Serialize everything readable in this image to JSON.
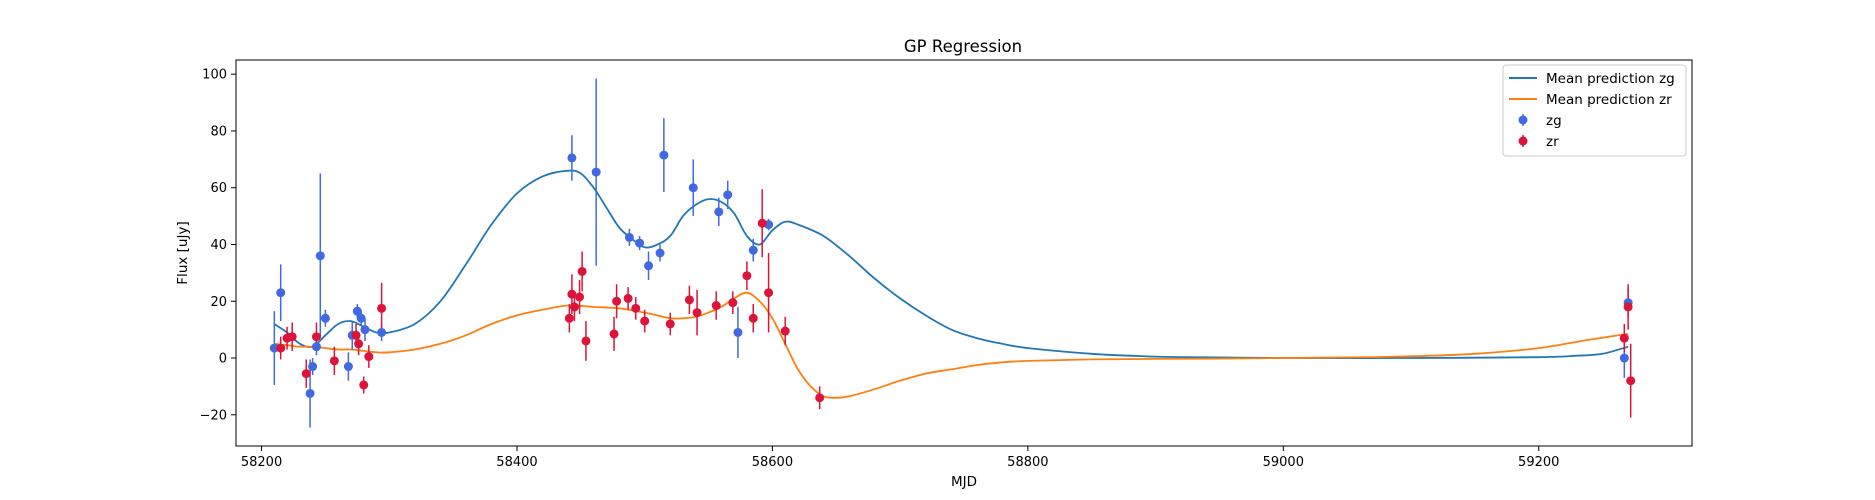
{
  "chart_data": {
    "type": "scatter",
    "title": "GP Regression",
    "xlabel": "MJD",
    "ylabel": "Flux [uJy]",
    "xlim": [
      58180,
      59320
    ],
    "ylim": [
      -31,
      105
    ],
    "xticks": [
      58200,
      58400,
      58600,
      58800,
      59000,
      59200
    ],
    "yticks": [
      -20,
      0,
      20,
      40,
      60,
      80,
      100
    ],
    "grid": false,
    "legend_position": "top-right",
    "legend": [
      "Mean prediction zg",
      "Mean prediction zr",
      "zg",
      "zr"
    ],
    "colors": {
      "mean_zg": "#1f77b4",
      "mean_zr": "#ff7f0e",
      "points_zg": "#4169e1",
      "points_zr": "#dc143c"
    },
    "mean_predictions": [
      {
        "name": "Mean prediction zg",
        "x": [
          58210,
          58220,
          58230,
          58240,
          58250,
          58260,
          58270,
          58280,
          58290,
          58300,
          58320,
          58340,
          58360,
          58380,
          58400,
          58420,
          58440,
          58450,
          58460,
          58470,
          58480,
          58490,
          58500,
          58510,
          58520,
          58530,
          58540,
          58550,
          58560,
          58570,
          58580,
          58590,
          58600,
          58610,
          58620,
          58640,
          58660,
          58680,
          58700,
          58720,
          58740,
          58760,
          58780,
          58800,
          58850,
          58900,
          58950,
          59000,
          59100,
          59200,
          59230,
          59250,
          59270
        ],
        "y": [
          12,
          9,
          5,
          4,
          8,
          12,
          13,
          11,
          9,
          9,
          12,
          20,
          33,
          47,
          58,
          64,
          66,
          65,
          60,
          53,
          46,
          42,
          39,
          40,
          43,
          50,
          54,
          56,
          55,
          51,
          43,
          40,
          45,
          48,
          47,
          43,
          36,
          28,
          21,
          15,
          10,
          7,
          5,
          3.5,
          1.5,
          0.5,
          0.2,
          0,
          0,
          0.3,
          0.8,
          1.5,
          4
        ]
      },
      {
        "name": "Mean prediction zr",
        "x": [
          58210,
          58220,
          58230,
          58240,
          58250,
          58260,
          58270,
          58280,
          58290,
          58300,
          58320,
          58340,
          58360,
          58380,
          58400,
          58420,
          58440,
          58460,
          58480,
          58500,
          58510,
          58520,
          58530,
          58540,
          58550,
          58560,
          58570,
          58580,
          58590,
          58600,
          58610,
          58620,
          58630,
          58640,
          58650,
          58660,
          58680,
          58700,
          58720,
          58740,
          58760,
          58780,
          58800,
          58850,
          58900,
          58950,
          59000,
          59050,
          59100,
          59150,
          59200,
          59240,
          59270
        ],
        "y": [
          5,
          4.5,
          4,
          4,
          3.5,
          3,
          3,
          2.5,
          2,
          2,
          3,
          5,
          8,
          12,
          15,
          17,
          18.5,
          18,
          17.5,
          16,
          15,
          14,
          14,
          14.5,
          16,
          18,
          21,
          23,
          20,
          14,
          5,
          -4,
          -10,
          -13.5,
          -14,
          -13.5,
          -11,
          -8,
          -5.5,
          -4,
          -2.5,
          -1.5,
          -1,
          -0.5,
          -0.3,
          -0.2,
          0,
          0.2,
          0.6,
          1.5,
          3.5,
          6.5,
          8.5
        ]
      }
    ],
    "series": [
      {
        "name": "zg",
        "x": [
          58210,
          58215,
          58238,
          58240,
          58243,
          58246,
          58250,
          58268,
          58271,
          58275,
          58278,
          58281,
          58294,
          58443,
          58462,
          58488,
          58496,
          58503,
          58512,
          58515,
          58538,
          58558,
          58565,
          58573,
          58585,
          58597,
          59267,
          59270
        ],
        "y": [
          3.5,
          23,
          -12.5,
          -3,
          4,
          36,
          14,
          -3,
          8,
          16.5,
          14,
          10,
          9,
          70.5,
          65.5,
          42.5,
          40.5,
          32.5,
          37,
          71.5,
          60,
          51.5,
          57.5,
          9,
          38,
          47,
          0,
          19.5
        ],
        "err": [
          13,
          10,
          12,
          3,
          3,
          29,
          3,
          5,
          5,
          2.5,
          2.5,
          4,
          3,
          8,
          33,
          3,
          2.5,
          5,
          3,
          13,
          10,
          5,
          5,
          9,
          4,
          2,
          7,
          5
        ]
      },
      {
        "name": "zr",
        "x": [
          58215,
          58220,
          58224,
          58235,
          58243,
          58257,
          58274,
          58276,
          58280,
          58284,
          58294,
          58441,
          58443,
          58445,
          58449,
          58451,
          58454,
          58476,
          58478,
          58487,
          58493,
          58500,
          58520,
          58535,
          58541,
          58556,
          58569,
          58580,
          58585,
          58592,
          58597,
          58610,
          58637,
          59267,
          59270,
          59272
        ],
        "y": [
          3.5,
          7,
          7.5,
          -5.5,
          7.5,
          -1,
          8,
          5,
          -9.5,
          0.5,
          17.5,
          14,
          22.5,
          18,
          21.5,
          30.5,
          6,
          8.5,
          20,
          21,
          17.5,
          13,
          12,
          20.5,
          16,
          18.5,
          19.5,
          29,
          14,
          47.5,
          23,
          9.5,
          -14,
          7,
          18,
          -8
        ],
        "err": [
          4,
          4,
          5,
          5,
          5,
          5,
          4,
          4,
          3,
          4,
          9,
          5,
          7,
          5,
          6,
          7,
          7,
          6,
          6,
          4,
          4,
          4,
          4,
          5,
          8,
          5,
          4,
          5,
          5,
          12,
          14,
          5,
          4,
          5,
          8,
          13
        ]
      }
    ]
  }
}
